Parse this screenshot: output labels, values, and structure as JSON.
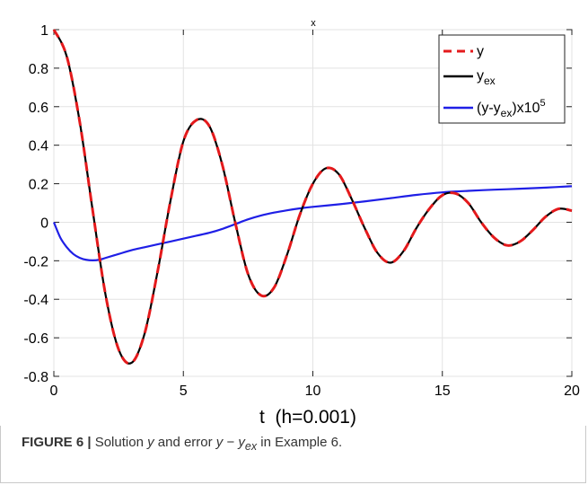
{
  "chart_data": {
    "type": "line",
    "title": "x",
    "xlabel": "t  (h=0.001)",
    "ylabel": "",
    "xlim": [
      0,
      20
    ],
    "ylim": [
      -0.8,
      1
    ],
    "xticks": [
      0,
      5,
      10,
      15,
      20
    ],
    "yticks": [
      -0.8,
      -0.6,
      -0.4,
      -0.2,
      0,
      0.2,
      0.4,
      0.6,
      0.8,
      1
    ],
    "xtick_labels": [
      "0",
      "5",
      "10",
      "15",
      "20"
    ],
    "ytick_labels": [
      "-0.8",
      "-0.6",
      "-0.4",
      "-0.2",
      "0",
      "0.2",
      "0.4",
      "0.6",
      "0.8",
      "1"
    ],
    "grid": true,
    "legend_position": "top-right",
    "series": [
      {
        "name": "y",
        "color": "#e41a1c",
        "style": "dashed",
        "x": [
          0,
          0.5,
          1,
          1.5,
          2,
          2.5,
          3,
          3.5,
          4,
          4.5,
          5,
          5.5,
          6,
          6.5,
          7,
          7.5,
          8,
          8.5,
          9,
          9.5,
          10,
          10.5,
          11,
          11.5,
          12,
          12.5,
          13,
          13.5,
          14,
          14.5,
          15,
          15.5,
          16,
          16.5,
          17,
          17.5,
          18,
          18.5,
          19,
          19.5,
          20
        ],
        "y": [
          1.0,
          0.86,
          0.52,
          0.06,
          -0.38,
          -0.66,
          -0.73,
          -0.58,
          -0.26,
          0.11,
          0.42,
          0.53,
          0.5,
          0.3,
          0.0,
          -0.27,
          -0.38,
          -0.34,
          -0.17,
          0.04,
          0.2,
          0.28,
          0.25,
          0.12,
          -0.03,
          -0.16,
          -0.21,
          -0.15,
          -0.03,
          0.07,
          0.14,
          0.15,
          0.1,
          0.0,
          -0.08,
          -0.12,
          -0.1,
          -0.04,
          0.03,
          0.07,
          0.06
        ]
      },
      {
        "name": "y",
        "name_subscript": "ex",
        "color": "#000000",
        "style": "solid",
        "x": [
          0,
          0.5,
          1,
          1.5,
          2,
          2.5,
          3,
          3.5,
          4,
          4.5,
          5,
          5.5,
          6,
          6.5,
          7,
          7.5,
          8,
          8.5,
          9,
          9.5,
          10,
          10.5,
          11,
          11.5,
          12,
          12.5,
          13,
          13.5,
          14,
          14.5,
          15,
          15.5,
          16,
          16.5,
          17,
          17.5,
          18,
          18.5,
          19,
          19.5,
          20
        ],
        "y": [
          1.0,
          0.86,
          0.52,
          0.06,
          -0.38,
          -0.66,
          -0.73,
          -0.58,
          -0.26,
          0.11,
          0.42,
          0.53,
          0.5,
          0.3,
          0.0,
          -0.27,
          -0.38,
          -0.34,
          -0.17,
          0.04,
          0.2,
          0.28,
          0.25,
          0.12,
          -0.03,
          -0.16,
          -0.21,
          -0.15,
          -0.03,
          0.07,
          0.14,
          0.15,
          0.1,
          0.0,
          -0.08,
          -0.12,
          -0.1,
          -0.04,
          0.03,
          0.07,
          0.06
        ]
      },
      {
        "name": "(y-y",
        "name_subscript": "ex",
        "name_suffix": ")x10",
        "name_superscript": "5",
        "color": "#1f1fe6",
        "style": "solid",
        "x": [
          0,
          0.25,
          0.5,
          0.75,
          1,
          1.25,
          1.5,
          1.75,
          2,
          2.5,
          3,
          3.5,
          4,
          4.5,
          5,
          5.5,
          6,
          6.5,
          7,
          7.5,
          8,
          8.5,
          9,
          9.5,
          10,
          11,
          12,
          13,
          14,
          15,
          16,
          17,
          18,
          19,
          20
        ],
        "y": [
          0.0,
          -0.08,
          -0.13,
          -0.165,
          -0.185,
          -0.195,
          -0.198,
          -0.195,
          -0.185,
          -0.165,
          -0.145,
          -0.13,
          -0.115,
          -0.1,
          -0.085,
          -0.07,
          -0.055,
          -0.035,
          -0.01,
          0.015,
          0.035,
          0.05,
          0.062,
          0.072,
          0.08,
          0.093,
          0.108,
          0.125,
          0.142,
          0.155,
          0.163,
          0.169,
          0.174,
          0.18,
          0.187
        ]
      }
    ]
  },
  "caption": {
    "label": "FIGURE 6 |",
    "text_1": " Solution ",
    "sym_y": "y",
    "text_2": " and error ",
    "sym_y2": "y",
    "text_minus": " − ",
    "sym_y3": "y",
    "sub_ex": "ex",
    "text_3": " in Example 6."
  }
}
